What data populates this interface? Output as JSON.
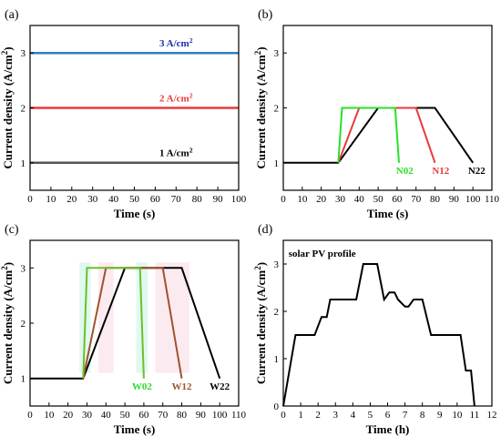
{
  "figure": {
    "panels": [
      "(a)",
      "(b)",
      "(c)",
      "(d)"
    ]
  },
  "chart_data": [
    {
      "id": "a",
      "panel_label": "(a)",
      "type": "line",
      "xlabel": "Time (s)",
      "ylabel": "Current density (A/cm²)",
      "xlim": [
        0,
        100
      ],
      "ylim": [
        0.5,
        3.5
      ],
      "xticks": [
        0,
        10,
        20,
        30,
        40,
        50,
        60,
        70,
        80,
        90,
        100
      ],
      "yticks": [
        1,
        2,
        3
      ],
      "series": [
        {
          "label": "1 A/cm²",
          "color": "#555555",
          "label_color": "#000000",
          "label_at": [
            70,
            1.12
          ],
          "x": [
            0,
            100
          ],
          "y": [
            1,
            1
          ]
        },
        {
          "label": "2 A/cm²",
          "color": "#e8393d",
          "label_color": "#e8393d",
          "label_at": [
            70,
            2.12
          ],
          "x": [
            0,
            100
          ],
          "y": [
            2,
            2
          ]
        },
        {
          "label": "3 A/cm²",
          "color": "#2f7fc1",
          "label_color": "#1a2fb0",
          "label_at": [
            70,
            3.12
          ],
          "x": [
            0,
            100
          ],
          "y": [
            3,
            3
          ]
        }
      ]
    },
    {
      "id": "b",
      "panel_label": "(b)",
      "type": "line",
      "xlabel": "Time (s)",
      "ylabel": "Current density (A/cm²)",
      "xlim": [
        0,
        110
      ],
      "ylim": [
        0.5,
        3.5
      ],
      "xticks": [
        0,
        10,
        20,
        30,
        40,
        50,
        60,
        70,
        80,
        90,
        100,
        110
      ],
      "yticks": [
        1,
        2,
        3
      ],
      "series": [
        {
          "label": "N22",
          "color": "#000000",
          "label_color": "#000000",
          "label_at": [
            102,
            0.8
          ],
          "x": [
            0,
            29,
            50,
            80,
            100
          ],
          "y": [
            1,
            1,
            2,
            2,
            1
          ]
        },
        {
          "label": "N12",
          "color": "#e8393d",
          "label_color": "#e8393d",
          "label_at": [
            83,
            0.8
          ],
          "x": [
            29,
            40,
            70,
            80
          ],
          "y": [
            1,
            2,
            2,
            1
          ]
        },
        {
          "label": "N02",
          "color": "#28e028",
          "label_color": "#28e028",
          "label_at": [
            64,
            0.8
          ],
          "x": [
            29,
            31,
            59,
            61
          ],
          "y": [
            1,
            2,
            2,
            1
          ]
        }
      ]
    },
    {
      "id": "c",
      "panel_label": "(c)",
      "type": "line",
      "xlabel": "Time (s)",
      "ylabel": "Current density (A/cm²)",
      "xlim": [
        0,
        110
      ],
      "ylim": [
        0.5,
        3.5
      ],
      "xticks": [
        0,
        10,
        20,
        30,
        40,
        50,
        60,
        70,
        80,
        90,
        100,
        110
      ],
      "yticks": [
        1,
        2,
        3
      ],
      "series": [
        {
          "label": "W22",
          "color": "#000000",
          "label_color": "#000000",
          "label_at": [
            100,
            0.8
          ],
          "x": [
            0,
            28,
            50,
            80,
            100
          ],
          "y": [
            1,
            1,
            3,
            3,
            1
          ]
        },
        {
          "label": "W12",
          "color": "#a0522d",
          "label_color": "#a0522d",
          "label_at": [
            80,
            0.8
          ],
          "x": [
            28,
            40,
            70,
            80
          ],
          "y": [
            1,
            3,
            3,
            1
          ]
        },
        {
          "label": "W02",
          "color": "#6dbf2a",
          "label_color": "#28e028",
          "label_at": [
            59,
            0.8
          ],
          "x": [
            28,
            30,
            58,
            60
          ],
          "y": [
            1,
            3,
            3,
            1
          ]
        }
      ]
    },
    {
      "id": "d",
      "panel_label": "(d)",
      "type": "line",
      "xlabel": "Time (h)",
      "ylabel": "Current density (A/cm²)",
      "xlim": [
        0,
        12
      ],
      "ylim": [
        0,
        3.5
      ],
      "xticks": [
        0,
        1,
        2,
        3,
        4,
        5,
        6,
        7,
        8,
        9,
        10,
        11,
        12
      ],
      "yticks": [
        0,
        1,
        2,
        3
      ],
      "annotation": "solar PV profile",
      "annotation_at": [
        0.3,
        3.15
      ],
      "series": [
        {
          "label": "",
          "color": "#000000",
          "x": [
            0,
            0.7,
            1.8,
            2.2,
            2.5,
            2.7,
            3,
            3.6,
            4.2,
            4.6,
            5.4,
            5.8,
            6.1,
            6.4,
            6.6,
            7.0,
            7.2,
            7.5,
            8.0,
            8.5,
            10.2,
            10.5,
            10.8,
            11.0
          ],
          "y": [
            0,
            1.5,
            1.5,
            1.88,
            1.88,
            2.25,
            2.25,
            2.25,
            2.25,
            3,
            3,
            2.25,
            2.4,
            2.4,
            2.25,
            2.1,
            2.1,
            2.25,
            2.25,
            1.5,
            1.5,
            0.75,
            0.75,
            0
          ]
        }
      ]
    }
  ]
}
